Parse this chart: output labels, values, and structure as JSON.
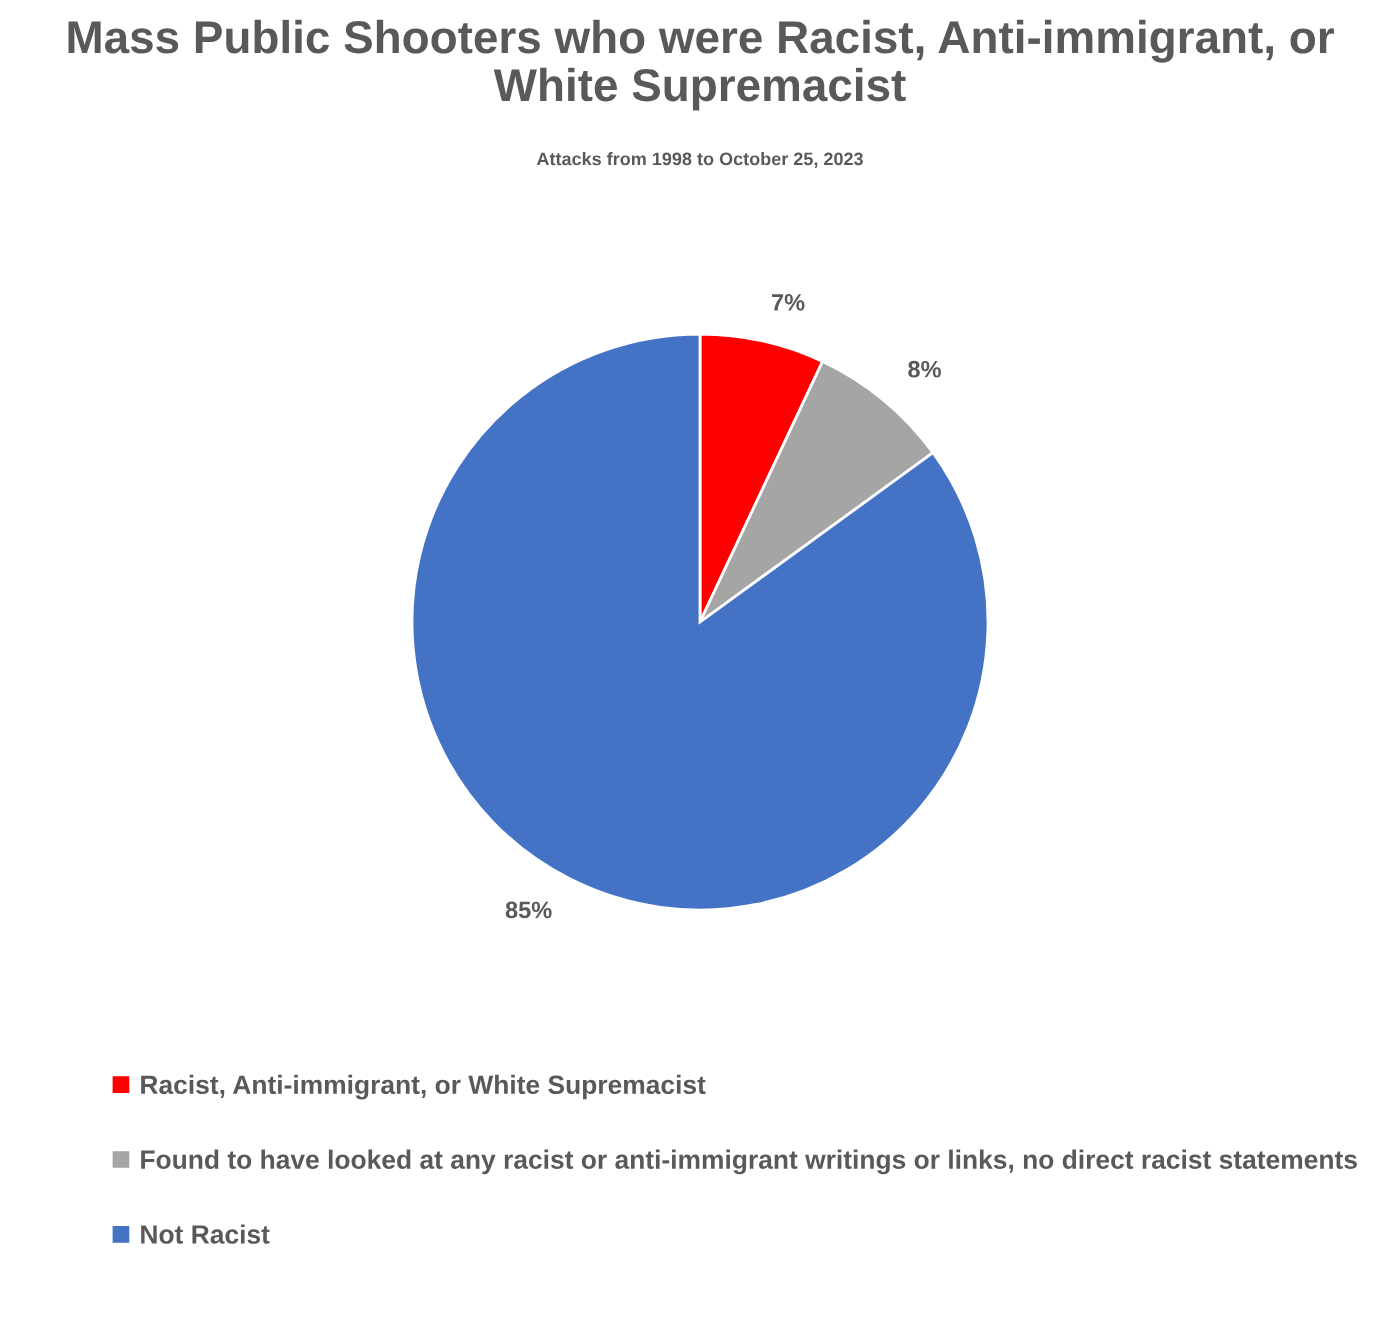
{
  "chart_data": {
    "type": "pie",
    "title": "Mass Public Shooters who were Racist, Anti-immigrant, or White Supremacist",
    "subtitle": "Attacks from 1998 to October 25, 2023",
    "categories": [
      "Racist, Anti-immigrant, or White Supremacist",
      "Found to have looked at any racist or anti-immigrant writings or links, no direct racist statements",
      "Not Racist"
    ],
    "values": [
      7,
      8,
      85
    ],
    "colors": [
      "#ff0000",
      "#a5a5a5",
      "#4472c4"
    ],
    "value_labels": [
      "7%",
      "8%",
      "85%"
    ],
    "legend": "bottom"
  }
}
